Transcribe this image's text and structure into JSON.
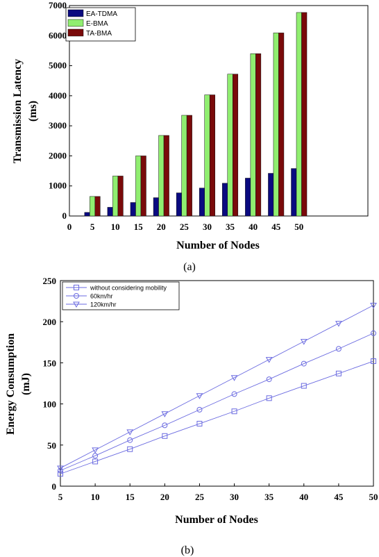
{
  "chart_data": [
    {
      "type": "bar",
      "caption": "(a)",
      "xlabel": "Number of Nodes",
      "ylabel_lines": [
        "Transmission Latency",
        "(ms)"
      ],
      "x_ticks": [
        "0",
        "5",
        "10",
        "15",
        "20",
        "25",
        "30",
        "35",
        "40",
        "45",
        "50"
      ],
      "y_ticks": [
        "0",
        "1000",
        "2000",
        "3000",
        "4000",
        "5000",
        "6000",
        "7000"
      ],
      "xlim": [
        0,
        65
      ],
      "ylim": [
        0,
        7000
      ],
      "categories": [
        5,
        10,
        15,
        20,
        25,
        30,
        35,
        40,
        45,
        50
      ],
      "legend_position": "top-left",
      "series": [
        {
          "name": "EA-TDMA",
          "color": "#0a0a80",
          "values": [
            120,
            290,
            450,
            610,
            770,
            930,
            1090,
            1260,
            1420,
            1580
          ]
        },
        {
          "name": "E-BMA",
          "color": "#90ee70",
          "values": [
            650,
            1330,
            2000,
            2680,
            3350,
            4030,
            4720,
            5400,
            6090,
            6770
          ]
        },
        {
          "name": "TA-BMA",
          "color": "#7a0a0a",
          "values": [
            650,
            1330,
            2000,
            2680,
            3350,
            4030,
            4720,
            5400,
            6090,
            6770
          ]
        }
      ]
    },
    {
      "type": "line",
      "caption": "(b)",
      "xlabel": "Number of Nodes",
      "ylabel_lines": [
        "Energy Consumption",
        "(mJ)"
      ],
      "x_ticks": [
        "5",
        "10",
        "15",
        "20",
        "25",
        "30",
        "35",
        "40",
        "45",
        "50"
      ],
      "y_ticks": [
        "0",
        "50",
        "100",
        "150",
        "200",
        "250"
      ],
      "xlim": [
        5,
        50
      ],
      "ylim": [
        0,
        250
      ],
      "x": [
        5,
        10,
        15,
        20,
        25,
        30,
        35,
        40,
        45,
        50
      ],
      "legend_position": "top-left",
      "series": [
        {
          "name": "without considering mobility",
          "marker": "square",
          "color": "#6a6ae0",
          "values": [
            15,
            30,
            45,
            61,
            76,
            91,
            107,
            122,
            137,
            152
          ]
        },
        {
          "name": "60km/hr",
          "marker": "circle",
          "color": "#6a6ae0",
          "values": [
            19,
            37,
            56,
            74,
            93,
            112,
            130,
            149,
            167,
            186
          ]
        },
        {
          "name": "120km/hr",
          "marker": "triangle",
          "color": "#6a6ae0",
          "values": [
            22,
            44,
            66,
            88,
            110,
            132,
            154,
            176,
            198,
            220
          ]
        }
      ]
    }
  ]
}
